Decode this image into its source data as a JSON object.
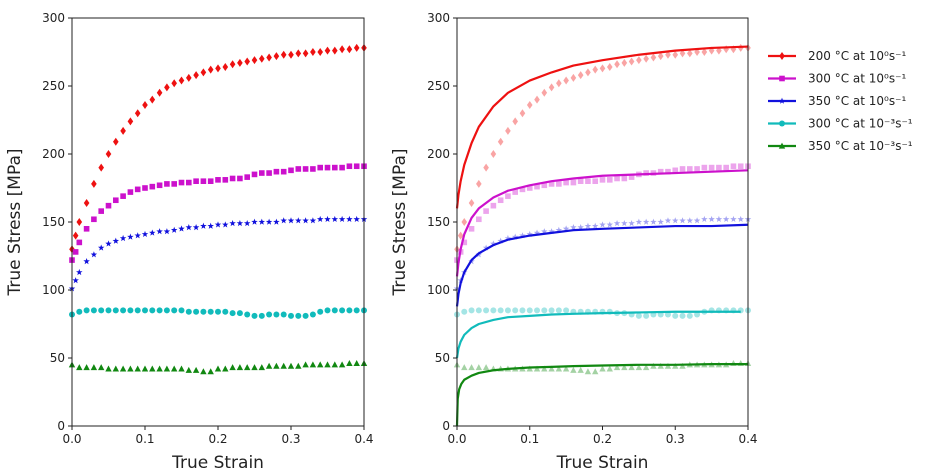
{
  "chart_data": [
    {
      "type": "scatter",
      "title": "",
      "xlabel": "True Strain",
      "ylabel": "True Stress [MPa]",
      "xlim": [
        0,
        0.4
      ],
      "ylim": [
        0,
        300
      ],
      "xticks": [
        "0.0",
        "0.1",
        "0.2",
        "0.3",
        "0.4"
      ],
      "yticks": [
        "0",
        "50",
        "100",
        "150",
        "200",
        "250",
        "300"
      ],
      "grid": false,
      "series": [
        {
          "color": "#ee1111",
          "marker": "diamond",
          "x": [
            0.0,
            0.005,
            0.01,
            0.02,
            0.03,
            0.04,
            0.05,
            0.06,
            0.07,
            0.08,
            0.09,
            0.1,
            0.11,
            0.12,
            0.13,
            0.14,
            0.15,
            0.16,
            0.17,
            0.18,
            0.19,
            0.2,
            0.21,
            0.22,
            0.23,
            0.24,
            0.25,
            0.26,
            0.27,
            0.28,
            0.29,
            0.3,
            0.31,
            0.32,
            0.33,
            0.34,
            0.35,
            0.36,
            0.37,
            0.38,
            0.39,
            0.4
          ],
          "y": [
            130,
            140,
            150,
            164,
            178,
            190,
            200,
            209,
            217,
            224,
            230,
            236,
            240,
            245,
            249,
            252,
            254,
            256,
            258,
            260,
            262,
            263,
            264,
            266,
            267,
            268,
            269,
            270,
            271,
            272,
            273,
            273,
            274,
            274,
            275,
            275,
            276,
            276,
            277,
            277,
            278,
            278
          ]
        },
        {
          "color": "#cc11cc",
          "marker": "square",
          "x": [
            0.0,
            0.005,
            0.01,
            0.02,
            0.03,
            0.04,
            0.05,
            0.06,
            0.07,
            0.08,
            0.09,
            0.1,
            0.11,
            0.12,
            0.13,
            0.14,
            0.15,
            0.16,
            0.17,
            0.18,
            0.19,
            0.2,
            0.21,
            0.22,
            0.23,
            0.24,
            0.25,
            0.26,
            0.27,
            0.28,
            0.29,
            0.3,
            0.31,
            0.32,
            0.33,
            0.34,
            0.35,
            0.36,
            0.37,
            0.38,
            0.39,
            0.4
          ],
          "y": [
            122,
            128,
            135,
            145,
            152,
            158,
            162,
            166,
            169,
            172,
            174,
            175,
            176,
            177,
            178,
            178,
            179,
            179,
            180,
            180,
            180,
            181,
            181,
            182,
            182,
            183,
            185,
            186,
            186,
            187,
            187,
            188,
            189,
            189,
            189,
            190,
            190,
            190,
            190,
            191,
            191,
            191
          ]
        },
        {
          "color": "#1111dd",
          "marker": "star",
          "x": [
            0.0,
            0.005,
            0.01,
            0.02,
            0.03,
            0.04,
            0.05,
            0.06,
            0.07,
            0.08,
            0.09,
            0.1,
            0.11,
            0.12,
            0.13,
            0.14,
            0.15,
            0.16,
            0.17,
            0.18,
            0.19,
            0.2,
            0.21,
            0.22,
            0.23,
            0.24,
            0.25,
            0.26,
            0.27,
            0.28,
            0.29,
            0.3,
            0.31,
            0.32,
            0.33,
            0.34,
            0.35,
            0.36,
            0.37,
            0.38,
            0.39,
            0.4
          ],
          "y": [
            101,
            107,
            113,
            121,
            126,
            131,
            134,
            136,
            138,
            139,
            140,
            141,
            142,
            143,
            143,
            144,
            145,
            146,
            146,
            147,
            147,
            148,
            148,
            149,
            149,
            149,
            150,
            150,
            150,
            150,
            151,
            151,
            151,
            151,
            151,
            152,
            152,
            152,
            152,
            152,
            152,
            152
          ]
        },
        {
          "color": "#11bbbb",
          "marker": "circle",
          "x": [
            0.0,
            0.01,
            0.02,
            0.03,
            0.04,
            0.05,
            0.06,
            0.07,
            0.08,
            0.09,
            0.1,
            0.11,
            0.12,
            0.13,
            0.14,
            0.15,
            0.16,
            0.17,
            0.18,
            0.19,
            0.2,
            0.21,
            0.22,
            0.23,
            0.24,
            0.25,
            0.26,
            0.27,
            0.28,
            0.29,
            0.3,
            0.31,
            0.32,
            0.33,
            0.34,
            0.35,
            0.36,
            0.37,
            0.38,
            0.39,
            0.4
          ],
          "y": [
            82,
            84,
            85,
            85,
            85,
            85,
            85,
            85,
            85,
            85,
            85,
            85,
            85,
            85,
            85,
            85,
            84,
            84,
            84,
            84,
            84,
            84,
            83,
            83,
            82,
            81,
            81,
            82,
            82,
            82,
            81,
            81,
            81,
            82,
            84,
            85,
            85,
            85,
            85,
            85,
            85
          ]
        },
        {
          "color": "#118811",
          "marker": "triangle",
          "x": [
            0.0,
            0.01,
            0.02,
            0.03,
            0.04,
            0.05,
            0.06,
            0.07,
            0.08,
            0.09,
            0.1,
            0.11,
            0.12,
            0.13,
            0.14,
            0.15,
            0.16,
            0.17,
            0.18,
            0.19,
            0.2,
            0.21,
            0.22,
            0.23,
            0.24,
            0.25,
            0.26,
            0.27,
            0.28,
            0.29,
            0.3,
            0.31,
            0.32,
            0.33,
            0.34,
            0.35,
            0.36,
            0.37,
            0.38,
            0.39,
            0.4
          ],
          "y": [
            45,
            43,
            43,
            43,
            43,
            42,
            42,
            42,
            42,
            42,
            42,
            42,
            42,
            42,
            42,
            42,
            41,
            41,
            40,
            40,
            42,
            42,
            43,
            43,
            43,
            43,
            43,
            44,
            44,
            44,
            44,
            44,
            45,
            45,
            45,
            45,
            45,
            45,
            46,
            46,
            46
          ]
        }
      ]
    },
    {
      "type": "line",
      "title": "",
      "xlabel": "True Strain",
      "ylabel": "True Stress [MPa]",
      "xlim": [
        0,
        0.4
      ],
      "ylim": [
        0,
        300
      ],
      "xticks": [
        "0.0",
        "0.1",
        "0.2",
        "0.3",
        "0.4"
      ],
      "yticks": [
        "0",
        "50",
        "100",
        "150",
        "200",
        "250",
        "300"
      ],
      "grid": false,
      "legend_position": "outside-right",
      "legend": [
        {
          "text": "200 °C at 10⁰s⁻¹",
          "color": "#ee1111",
          "marker": "diamond"
        },
        {
          "text": "300 °C at 10⁰s⁻¹",
          "color": "#cc11cc",
          "marker": "square"
        },
        {
          "text": "350 °C at 10⁰s⁻¹",
          "color": "#1111dd",
          "marker": "star"
        },
        {
          "text": "300 °C at 10⁻³s⁻¹",
          "color": "#11bbbb",
          "marker": "circle"
        },
        {
          "text": "350 °C at 10⁻³s⁻¹",
          "color": "#118811",
          "marker": "triangle"
        }
      ],
      "model_curves": [
        {
          "color": "#ee1111",
          "x": [
            0.0,
            0.002,
            0.005,
            0.01,
            0.02,
            0.03,
            0.05,
            0.07,
            0.1,
            0.13,
            0.16,
            0.2,
            0.25,
            0.3,
            0.35,
            0.4
          ],
          "y": [
            160,
            170,
            180,
            192,
            208,
            220,
            235,
            245,
            254,
            260,
            265,
            269,
            273,
            276,
            278,
            279
          ]
        },
        {
          "color": "#cc11cc",
          "x": [
            0.0,
            0.002,
            0.005,
            0.01,
            0.02,
            0.03,
            0.05,
            0.07,
            0.1,
            0.13,
            0.16,
            0.2,
            0.25,
            0.3,
            0.35,
            0.4
          ],
          "y": [
            110,
            120,
            130,
            141,
            153,
            160,
            168,
            173,
            177,
            180,
            182,
            184,
            185,
            186,
            187,
            188
          ]
        },
        {
          "color": "#1111dd",
          "x": [
            0.0,
            0.002,
            0.005,
            0.01,
            0.02,
            0.03,
            0.05,
            0.07,
            0.1,
            0.13,
            0.16,
            0.2,
            0.25,
            0.3,
            0.35,
            0.4
          ],
          "y": [
            88,
            97,
            105,
            113,
            122,
            127,
            133,
            137,
            140,
            142,
            144,
            145,
            146,
            147,
            147,
            148
          ]
        },
        {
          "color": "#11bbbb",
          "x": [
            0.0,
            0.002,
            0.005,
            0.01,
            0.02,
            0.03,
            0.05,
            0.07,
            0.1,
            0.13,
            0.16,
            0.2,
            0.25,
            0.3,
            0.35,
            0.39
          ],
          "y": [
            50,
            57,
            62,
            67,
            72,
            75,
            78,
            80,
            81,
            82,
            82.5,
            83,
            83.5,
            84,
            84,
            84
          ]
        },
        {
          "color": "#118811",
          "x": [
            0.0,
            0.001,
            0.003,
            0.006,
            0.01,
            0.02,
            0.03,
            0.05,
            0.07,
            0.1,
            0.13,
            0.16,
            0.2,
            0.25,
            0.3,
            0.35,
            0.4
          ],
          "y": [
            0,
            20,
            27,
            31,
            34,
            37,
            39,
            41,
            42,
            43,
            43.5,
            44,
            44.5,
            45,
            45,
            45.5,
            45.5
          ]
        }
      ]
    }
  ]
}
